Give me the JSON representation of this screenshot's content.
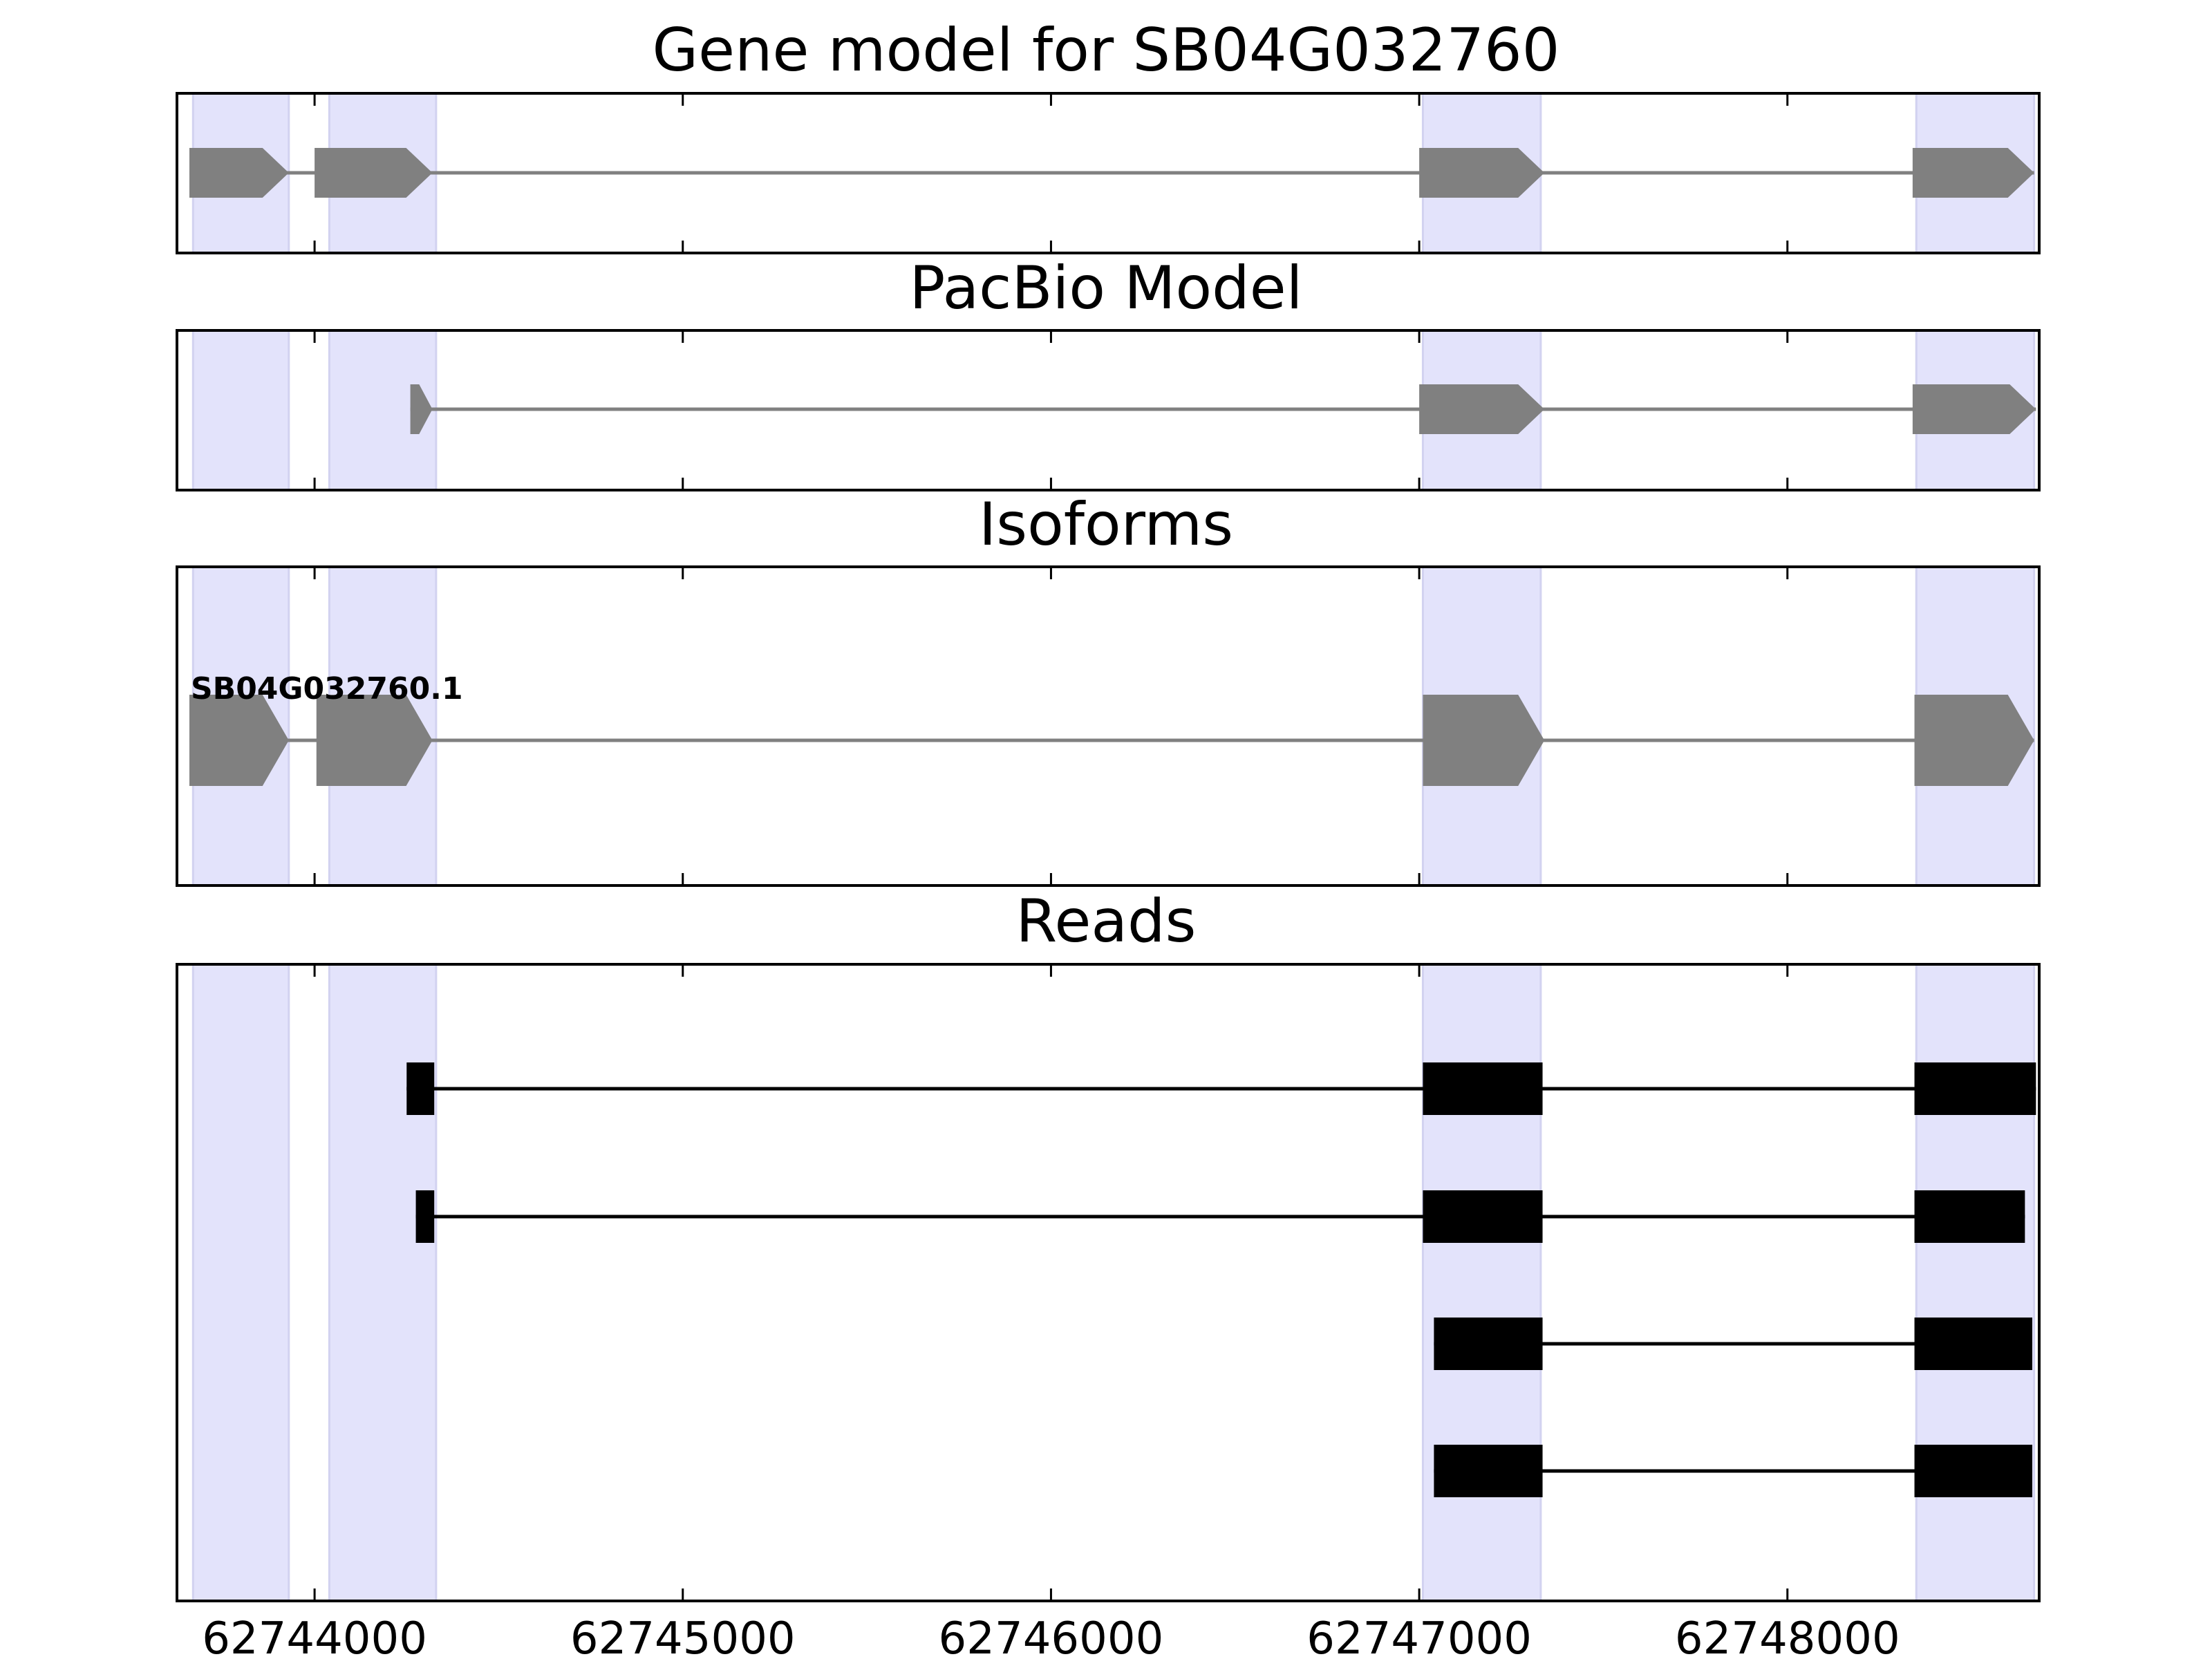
{
  "chart_data": {
    "type": "gene-track",
    "colors": {
      "exon_highlight": "#e3e3fb",
      "model_exon": "#808080",
      "model_intron": "#808080",
      "read_exon": "#000000",
      "read_intron": "#000000",
      "frame": "#000000"
    },
    "x_axis": {
      "range": [
        62743630,
        62748680
      ],
      "ticks": [
        62744000,
        62745000,
        62746000,
        62747000,
        62748000
      ],
      "tick_labels": [
        "62744000",
        "62745000",
        "62746000",
        "62747000",
        "62748000"
      ]
    },
    "highlight_regions": [
      [
        62743670,
        62743930
      ],
      [
        62744040,
        62744330
      ],
      [
        62747010,
        62747330
      ],
      [
        62748350,
        62748670
      ]
    ],
    "panels": [
      {
        "key": "gene_model",
        "title": "Gene model for SB04G032760",
        "style": "model",
        "strand": "+",
        "transcripts": [
          {
            "label": "",
            "exons": [
              [
                62743660,
                62743930
              ],
              [
                62744000,
                62744320
              ],
              [
                62747000,
                62747340
              ],
              [
                62748340,
                62748670
              ]
            ]
          }
        ]
      },
      {
        "key": "pacbio_model",
        "title": "PacBio Model",
        "style": "model",
        "strand": "+",
        "transcripts": [
          {
            "label": "",
            "exons": [
              [
                62744260,
                62744320
              ],
              [
                62747000,
                62747340
              ],
              [
                62748340,
                62748675
              ]
            ]
          }
        ]
      },
      {
        "key": "isoforms",
        "title": "Isoforms",
        "style": "model",
        "strand": "+",
        "transcripts": [
          {
            "label": "SB04G032760.1",
            "exons": [
              [
                62743660,
                62743930
              ],
              [
                62744005,
                62744320
              ],
              [
                62747010,
                62747340
              ],
              [
                62748345,
                62748670
              ]
            ]
          }
        ]
      },
      {
        "key": "reads",
        "title": "Reads",
        "style": "reads",
        "strand": "+",
        "transcripts": [
          {
            "label": "",
            "exons": [
              [
                62744250,
                62744325
              ],
              [
                62747010,
                62747335
              ],
              [
                62748345,
                62748675
              ]
            ]
          },
          {
            "label": "",
            "exons": [
              [
                62744275,
                62744325
              ],
              [
                62747010,
                62747335
              ],
              [
                62748345,
                62748645
              ]
            ]
          },
          {
            "label": "",
            "exons": [
              [
                62747040,
                62747335
              ],
              [
                62748345,
                62748665
              ]
            ]
          },
          {
            "label": "",
            "exons": [
              [
                62747040,
                62747335
              ],
              [
                62748345,
                62748665
              ]
            ]
          }
        ]
      }
    ]
  }
}
